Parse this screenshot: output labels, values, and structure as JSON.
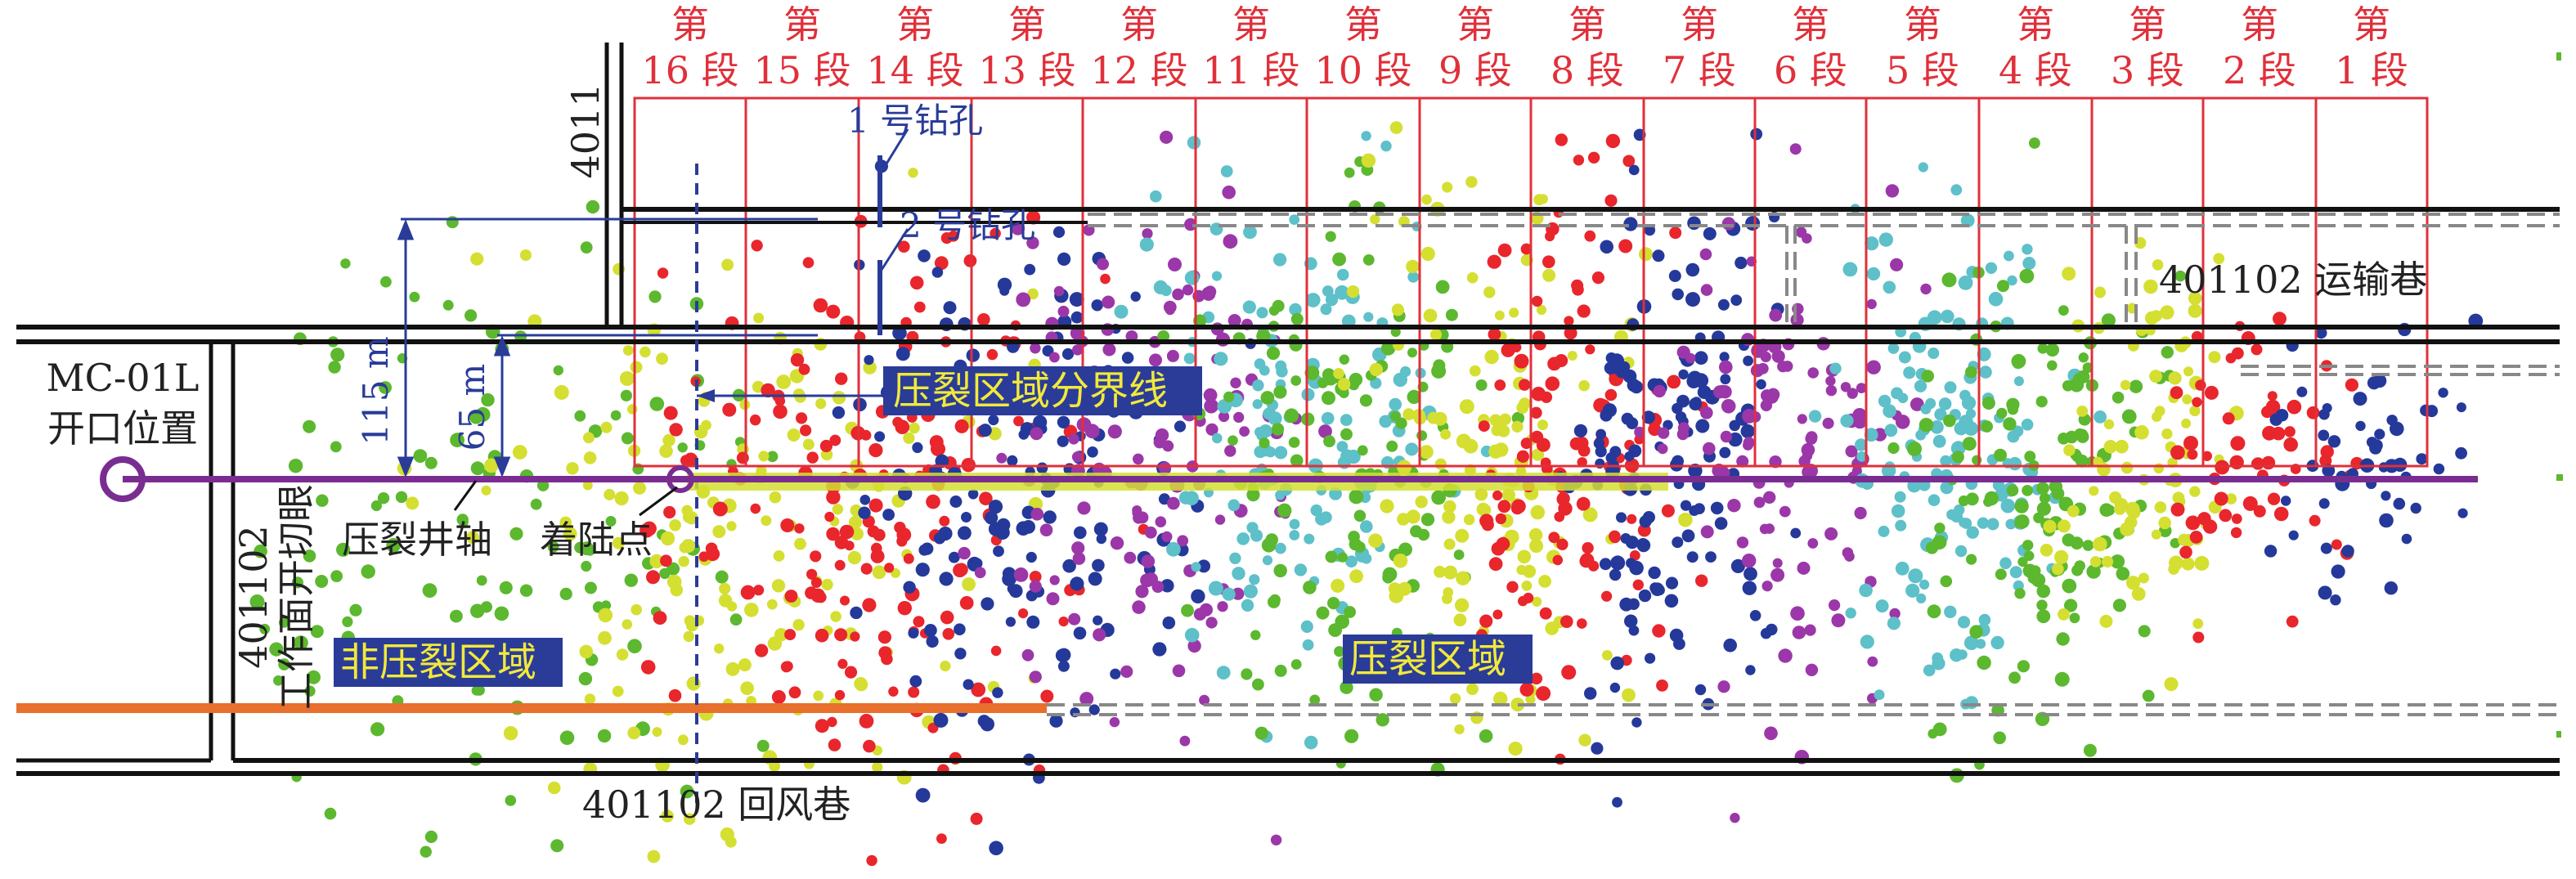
{
  "stages": [
    {
      "line1": "第",
      "line2": "16 段"
    },
    {
      "line1": "第",
      "line2": "15 段"
    },
    {
      "line1": "第",
      "line2": "14 段"
    },
    {
      "line1": "第",
      "line2": "13 段"
    },
    {
      "line1": "第",
      "line2": "12 段"
    },
    {
      "line1": "第",
      "line2": "11 段"
    },
    {
      "line1": "第",
      "line2": "10 段"
    },
    {
      "line1": "第",
      "line2": "9 段"
    },
    {
      "line1": "第",
      "line2": "8 段"
    },
    {
      "line1": "第",
      "line2": "7 段"
    },
    {
      "line1": "第",
      "line2": "6 段"
    },
    {
      "line1": "第",
      "line2": "5 段"
    },
    {
      "line1": "第",
      "line2": "4 段"
    },
    {
      "line1": "第",
      "line2": "3 段"
    },
    {
      "line1": "第",
      "line2": "2 段"
    },
    {
      "line1": "第",
      "line2": "1 段"
    }
  ],
  "labels": {
    "left_road_id": "4011",
    "borehole_1": "1 号钻孔",
    "borehole_2": "2 号钻孔",
    "transport_road": "401102 运输巷",
    "opening_line1": "MC-01L",
    "opening_line2": "开口位置",
    "dist_115": "115 m",
    "dist_65": "65 m",
    "boundary_line": "压裂区域分界线",
    "wellbore_axis": "压裂井轴",
    "landing_point": "着陆点",
    "cut_face_line1": "401102",
    "cut_face_line2": "工作面开切眼",
    "non_frac_zone": "非压裂区域",
    "frac_zone": "压裂区域",
    "return_road": "401102 回风巷"
  },
  "colors": {
    "stage_red": "#e0303a",
    "wellbore_purple": "#7a2d91",
    "orange_road": "#e86f2c",
    "highlight_blue": "#2a3c98",
    "highlight_text": "#f2e93a",
    "event_red": "#e8262c",
    "event_navy": "#25399a",
    "event_purple": "#9b37a8",
    "event_cyan": "#5ec0c9",
    "event_green": "#5cb82e",
    "event_yellow": "#d4df31"
  }
}
